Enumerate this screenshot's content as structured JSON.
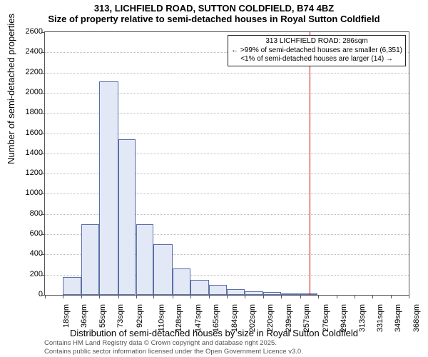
{
  "title": {
    "line1": "313, LICHFIELD ROAD, SUTTON COLDFIELD, B74 4BZ",
    "line2": "Size of property relative to semi-detached houses in Royal Sutton Coldfield"
  },
  "axes": {
    "ylabel": "Number of semi-detached properties",
    "xlabel": "Distribution of semi-detached houses by size in Royal Sutton Coldfield",
    "ylim": [
      0,
      2600
    ],
    "ytick_step": 200,
    "label_fontsize": 13,
    "tick_fontsize": 11
  },
  "chart": {
    "type": "histogram",
    "bar_fill": "#e2e8f5",
    "bar_border": "#5a6fa8",
    "plot_border": "#555555",
    "grid_color": "#bbbbbb",
    "background_color": "#ffffff",
    "x_tick_labels": [
      "18sqm",
      "36sqm",
      "55sqm",
      "73sqm",
      "92sqm",
      "110sqm",
      "128sqm",
      "147sqm",
      "165sqm",
      "184sqm",
      "202sqm",
      "220sqm",
      "239sqm",
      "257sqm",
      "276sqm",
      "294sqm",
      "313sqm",
      "331sqm",
      "349sqm",
      "368sqm",
      "386sqm"
    ],
    "x_tick_positions": [
      18,
      36,
      55,
      73,
      92,
      110,
      128,
      147,
      165,
      184,
      202,
      220,
      239,
      257,
      276,
      294,
      313,
      331,
      349,
      368,
      386
    ],
    "bars": [
      {
        "x0": 18,
        "x1": 36,
        "y": 0
      },
      {
        "x0": 36,
        "x1": 55,
        "y": 180
      },
      {
        "x0": 55,
        "x1": 73,
        "y": 700
      },
      {
        "x0": 73,
        "x1": 92,
        "y": 2110
      },
      {
        "x0": 92,
        "x1": 110,
        "y": 1540
      },
      {
        "x0": 110,
        "x1": 128,
        "y": 700
      },
      {
        "x0": 128,
        "x1": 147,
        "y": 500
      },
      {
        "x0": 147,
        "x1": 165,
        "y": 260
      },
      {
        "x0": 165,
        "x1": 184,
        "y": 150
      },
      {
        "x0": 184,
        "x1": 202,
        "y": 100
      },
      {
        "x0": 202,
        "x1": 220,
        "y": 60
      },
      {
        "x0": 220,
        "x1": 239,
        "y": 35
      },
      {
        "x0": 239,
        "x1": 257,
        "y": 30
      },
      {
        "x0": 257,
        "x1": 276,
        "y": 15
      },
      {
        "x0": 276,
        "x1": 294,
        "y": 10
      },
      {
        "x0": 294,
        "x1": 313,
        "y": 0
      },
      {
        "x0": 313,
        "x1": 331,
        "y": 0
      },
      {
        "x0": 331,
        "x1": 349,
        "y": 0
      },
      {
        "x0": 349,
        "x1": 368,
        "y": 0
      },
      {
        "x0": 368,
        "x1": 386,
        "y": 0
      }
    ],
    "xlim": [
      18,
      386
    ]
  },
  "marker_line": {
    "x": 286,
    "color": "#cc0000"
  },
  "annotation": {
    "line1": "313 LICHFIELD ROAD: 286sqm",
    "line2": "← >99% of semi-detached houses are smaller (6,351)",
    "line3": "<1% of semi-detached houses are larger (14) →"
  },
  "attribution": {
    "line1": "Contains HM Land Registry data © Crown copyright and database right 2025.",
    "line2": "Contains public sector information licensed under the Open Government Licence v3.0."
  }
}
